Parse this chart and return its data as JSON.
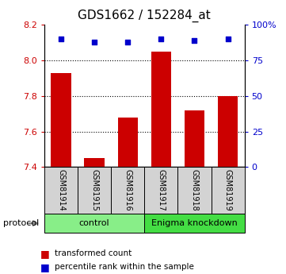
{
  "title": "GDS1662 / 152284_at",
  "samples": [
    "GSM81914",
    "GSM81915",
    "GSM81916",
    "GSM81917",
    "GSM81918",
    "GSM81919"
  ],
  "bar_values": [
    7.93,
    7.45,
    7.68,
    8.05,
    7.72,
    7.8
  ],
  "percentile_values": [
    90,
    88,
    88,
    90,
    89,
    90
  ],
  "ylim_left": [
    7.4,
    8.2
  ],
  "ylim_right": [
    0,
    100
  ],
  "yticks_left": [
    7.4,
    7.6,
    7.8,
    8.0,
    8.2
  ],
  "yticks_right": [
    0,
    25,
    50,
    75,
    100
  ],
  "bar_color": "#cc0000",
  "dot_color": "#0000cc",
  "bar_width": 0.6,
  "groups": [
    {
      "label": "control",
      "indices": [
        0,
        1,
        2
      ],
      "color": "#88ee88"
    },
    {
      "label": "Enigma knockdown",
      "indices": [
        3,
        4,
        5
      ],
      "color": "#44dd44"
    }
  ],
  "protocol_label": "protocol",
  "legend_bar_label": "transformed count",
  "legend_dot_label": "percentile rank within the sample",
  "title_fontsize": 11,
  "tick_label_fontsize": 8,
  "sample_fontsize": 7,
  "group_fontsize": 8,
  "legend_fontsize": 7.5
}
